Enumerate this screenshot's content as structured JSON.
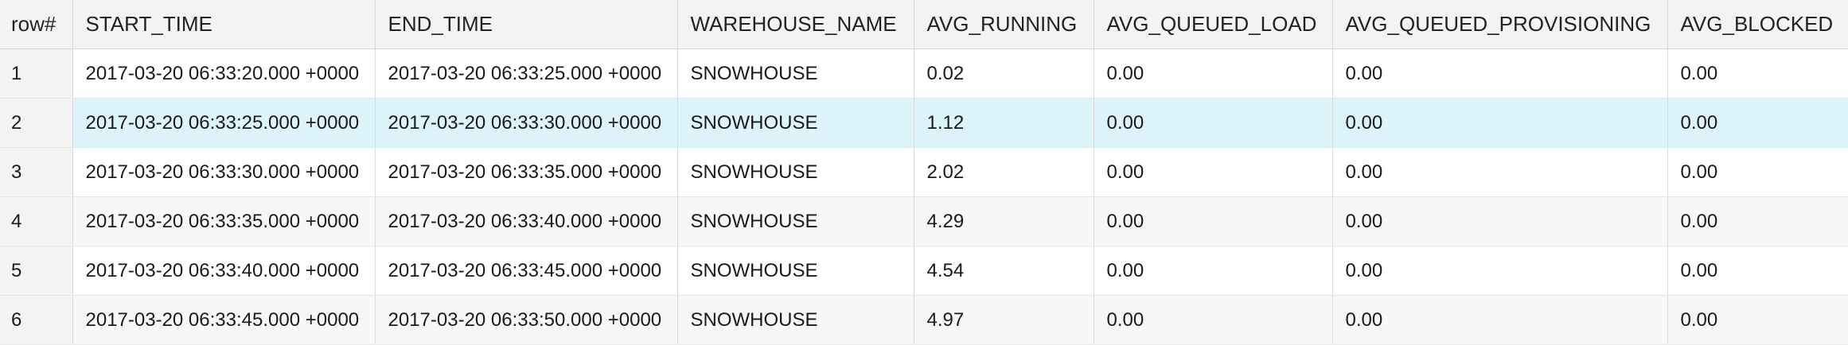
{
  "columns": [
    "row#",
    "START_TIME",
    "END_TIME",
    "WAREHOUSE_NAME",
    "AVG_RUNNING",
    "AVG_QUEUED_LOAD",
    "AVG_QUEUED_PROVISIONING",
    "AVG_BLOCKED"
  ],
  "rows": [
    [
      "1",
      "2017-03-20 06:33:20.000 +0000",
      "2017-03-20 06:33:25.000 +0000",
      "SNOWHOUSE",
      "0.02",
      "0.00",
      "0.00",
      "0.00"
    ],
    [
      "2",
      "2017-03-20 06:33:25.000 +0000",
      "2017-03-20 06:33:30.000 +0000",
      "SNOWHOUSE",
      "1.12",
      "0.00",
      "0.00",
      "0.00"
    ],
    [
      "3",
      "2017-03-20 06:33:30.000 +0000",
      "2017-03-20 06:33:35.000 +0000",
      "SNOWHOUSE",
      "2.02",
      "0.00",
      "0.00",
      "0.00"
    ],
    [
      "4",
      "2017-03-20 06:33:35.000 +0000",
      "2017-03-20 06:33:40.000 +0000",
      "SNOWHOUSE",
      "4.29",
      "0.00",
      "0.00",
      "0.00"
    ],
    [
      "5",
      "2017-03-20 06:33:40.000 +0000",
      "2017-03-20 06:33:45.000 +0000",
      "SNOWHOUSE",
      "4.54",
      "0.00",
      "0.00",
      "0.00"
    ],
    [
      "6",
      "2017-03-20 06:33:45.000 +0000",
      "2017-03-20 06:33:50.000 +0000",
      "SNOWHOUSE",
      "4.97",
      "0.00",
      "0.00",
      "0.00"
    ]
  ],
  "selected_row": "2",
  "colors": {
    "header_bg": "#f3f3f3",
    "selected_row_bg": "#dcf4fa",
    "alt_row_bg": "#f7f7f7",
    "grid_line": "#dadada"
  }
}
